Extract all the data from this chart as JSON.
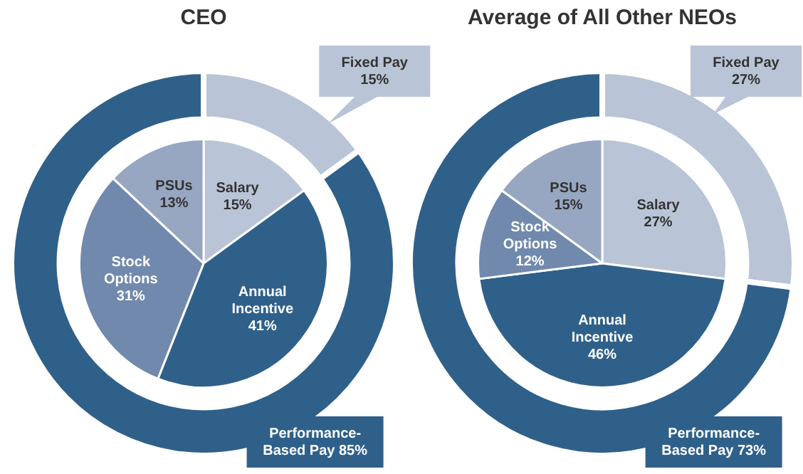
{
  "chart_data": [
    {
      "type": "donut",
      "title": "CEO",
      "categories": [
        "Fixed Pay",
        "Performance-Based Pay"
      ],
      "values": [
        15,
        85
      ],
      "colors": [
        "#b9c4d6",
        "#2f6089"
      ],
      "value_labels": [
        "15%",
        "85%"
      ]
    },
    {
      "type": "pie",
      "categories": [
        "Salary",
        "Annual Incentive",
        "Stock Options",
        "PSUs"
      ],
      "values": [
        15,
        41,
        31,
        13
      ],
      "colors": [
        "#b9c4d6",
        "#2f6089",
        "#7189ad",
        "#97a7c1"
      ],
      "value_labels": [
        "15%",
        "41%",
        "31%",
        "13%"
      ]
    },
    {
      "type": "donut",
      "title": "Average of All Other NEOs",
      "categories": [
        "Fixed Pay",
        "Performance-Based Pay"
      ],
      "values": [
        27,
        73
      ],
      "colors": [
        "#b9c4d6",
        "#2f6089"
      ],
      "value_labels": [
        "27%",
        "73%"
      ]
    },
    {
      "type": "pie",
      "categories": [
        "Salary",
        "Annual Incentive",
        "Stock Options",
        "PSUs"
      ],
      "values": [
        27,
        46,
        12,
        15
      ],
      "colors": [
        "#b9c4d6",
        "#2f6089",
        "#7189ad",
        "#97a7c1"
      ],
      "value_labels": [
        "27%",
        "46%",
        "12%",
        "15%"
      ]
    }
  ]
}
